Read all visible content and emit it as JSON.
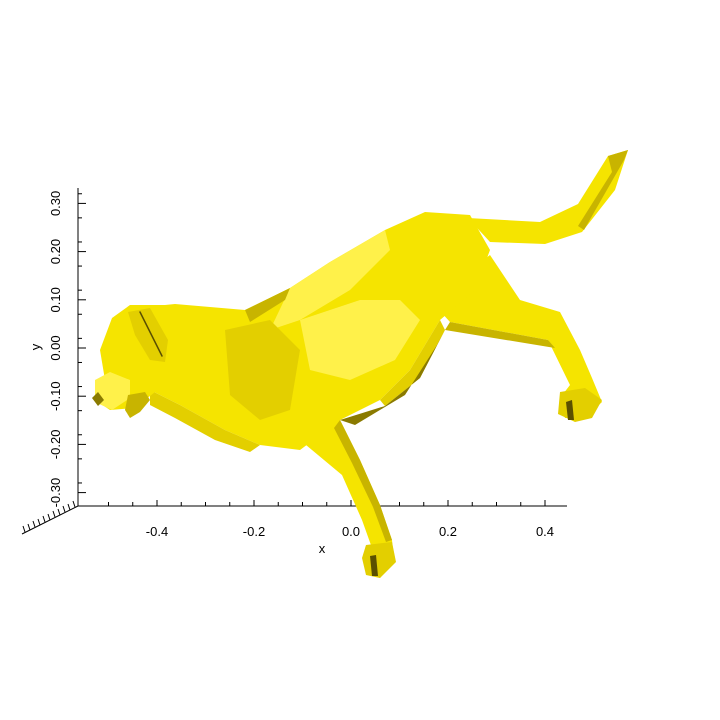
{
  "plot": {
    "x_axis": {
      "title": "x",
      "ticks": [
        {
          "value": -0.4,
          "label": "-0.4"
        },
        {
          "value": -0.2,
          "label": "-0.2"
        },
        {
          "value": 0.0,
          "label": "0.0"
        },
        {
          "value": 0.2,
          "label": "0.2"
        },
        {
          "value": 0.4,
          "label": "0.4"
        }
      ]
    },
    "y_axis": {
      "title": "y",
      "ticks": [
        {
          "value": -0.3,
          "label": "-0.30"
        },
        {
          "value": -0.2,
          "label": "-0.20"
        },
        {
          "value": -0.1,
          "label": "-0.10"
        },
        {
          "value": 0.0,
          "label": "0.00"
        },
        {
          "value": 0.1,
          "label": "0.10"
        },
        {
          "value": 0.2,
          "label": "0.20"
        },
        {
          "value": 0.3,
          "label": "0.30"
        }
      ]
    },
    "mesh": {
      "subject": "dog",
      "color": "#f5e400",
      "shade_colors": [
        "#fff14a",
        "#f5e400",
        "#e3cf00",
        "#c8b400",
        "#8a7a00",
        "#5a4f00"
      ]
    }
  }
}
